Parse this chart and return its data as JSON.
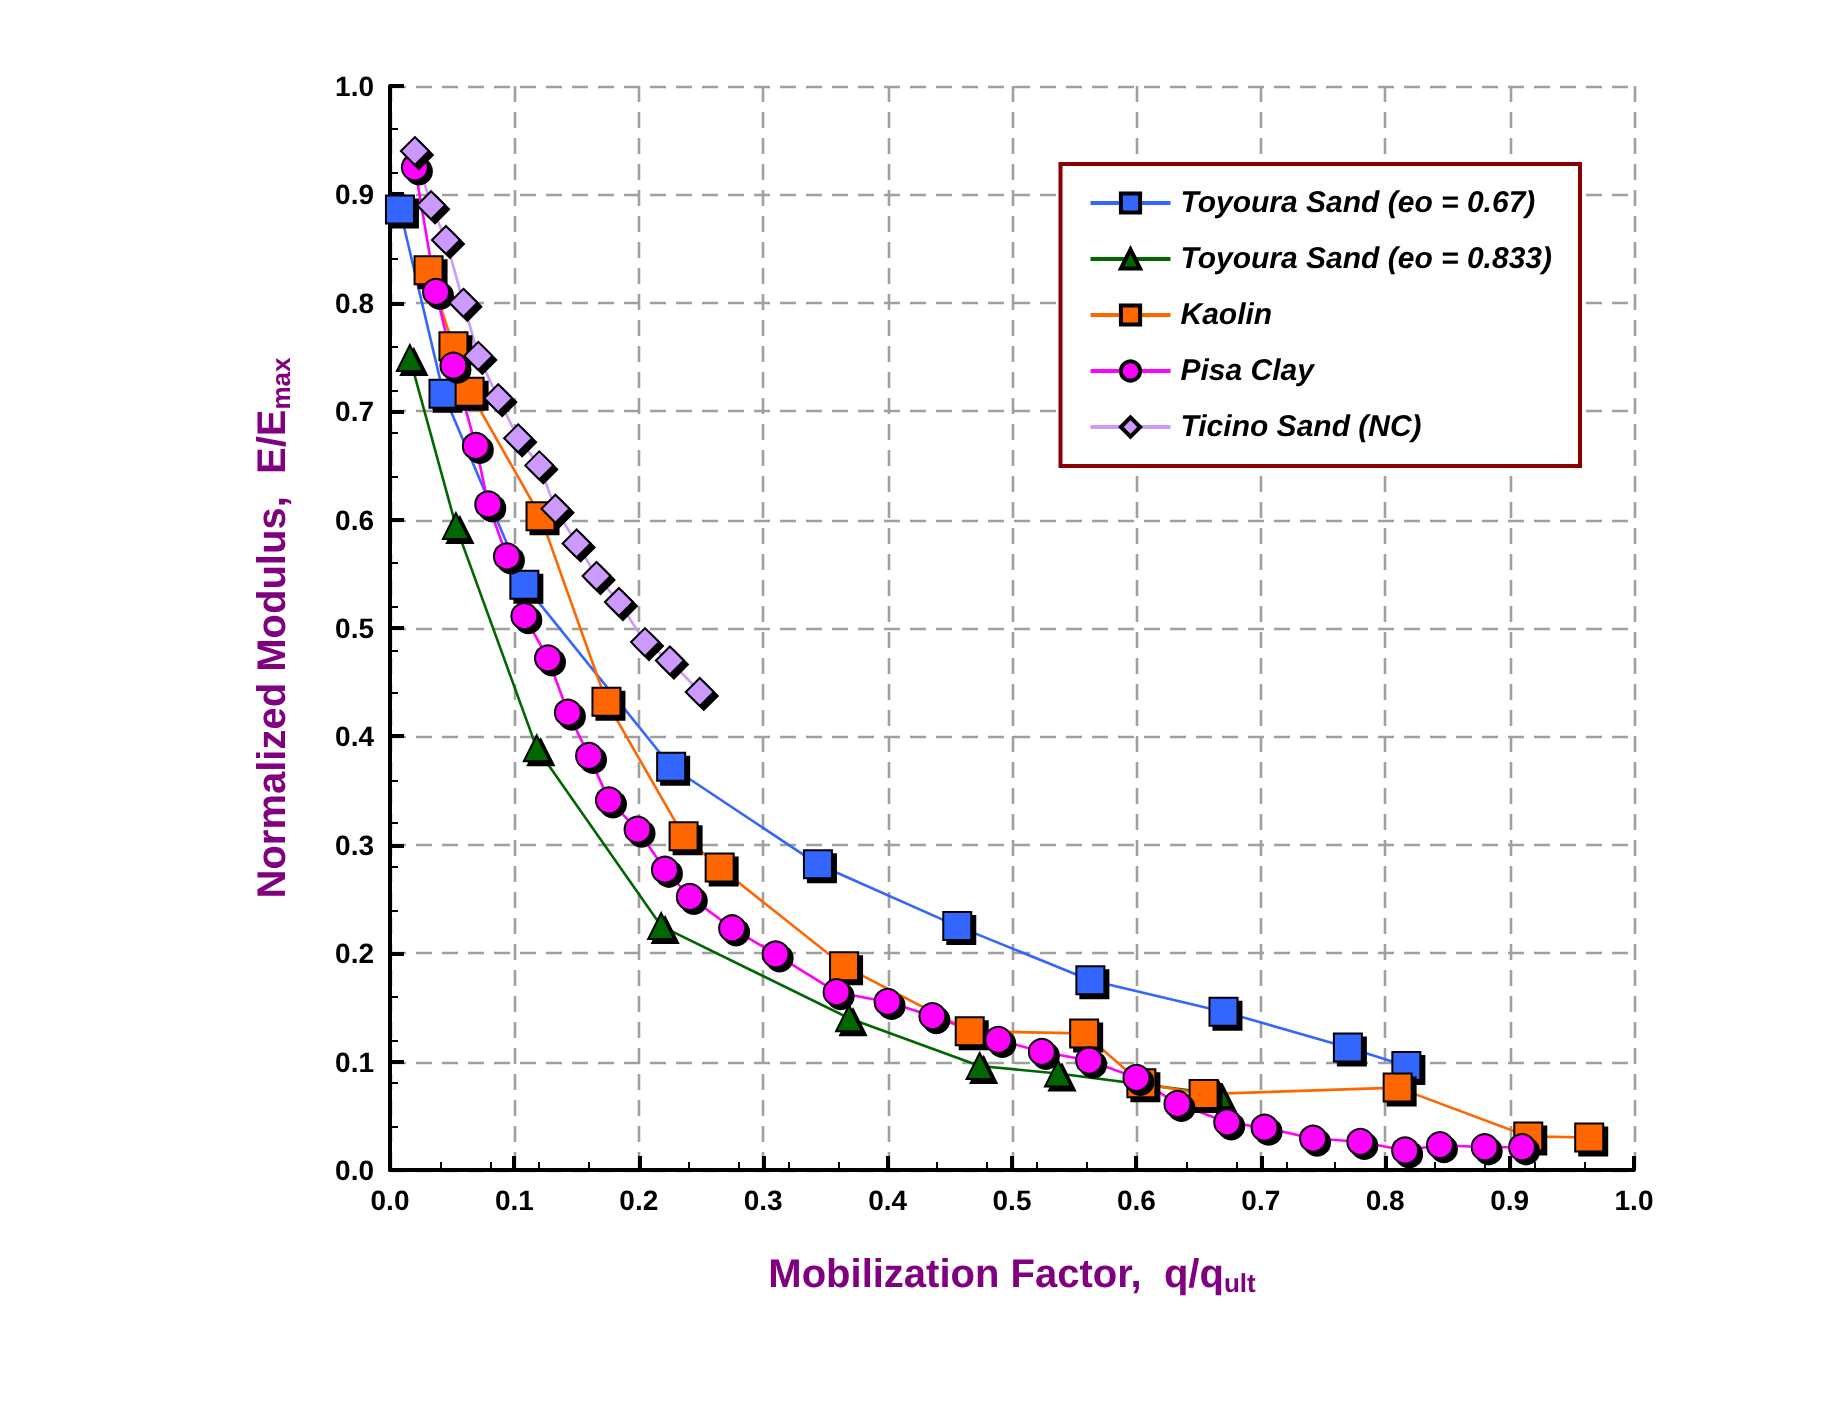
{
  "chart_data": {
    "type": "line",
    "xlabel": "Mobilization Factor,  q/q$_{ult}$",
    "ylabel": "Normalized Modulus,  E/E$_{max}$",
    "xlim": [
      0,
      1
    ],
    "ylim": [
      0,
      1
    ],
    "xticks": [
      {
        "value": 0,
        "label": "0.0"
      },
      0.1,
      0.2,
      0.3,
      0.4,
      0.5,
      0.6,
      0.7,
      0.8,
      0.9,
      {
        "value": 1,
        "label": "1.0"
      }
    ],
    "yticks": [
      {
        "value": 0,
        "label": "0.0"
      },
      0.1,
      0.2,
      0.3,
      0.4,
      0.5,
      0.6,
      0.7,
      0.8,
      0.9,
      {
        "value": 1,
        "label": "1.0"
      }
    ],
    "grid": true,
    "legend": "top right",
    "series": [
      {
        "name": "Toyoura Sand (eo = 0.67)",
        "color": "#3366ff",
        "marker": "square",
        "x": [
          0.008,
          0.043,
          0.108,
          0.226,
          0.344,
          0.456,
          0.563,
          0.67,
          0.77,
          0.817
        ],
        "values": [
          0.886,
          0.716,
          0.54,
          0.372,
          0.282,
          0.225,
          0.175,
          0.146,
          0.113,
          0.096
        ]
      },
      {
        "name": "Toyoura Sand (eo = 0.833)",
        "color": "#006600",
        "marker": "triangle",
        "x": [
          0.016,
          0.053,
          0.118,
          0.218,
          0.369,
          0.474,
          0.537,
          0.666
        ],
        "values": [
          0.749,
          0.594,
          0.389,
          0.225,
          0.14,
          0.096,
          0.089,
          0.07
        ]
      },
      {
        "name": "Kaolin",
        "color": "#ff6600",
        "marker": "square",
        "x": [
          0.031,
          0.051,
          0.064,
          0.121,
          0.174,
          0.236,
          0.265,
          0.365,
          0.466,
          0.558,
          0.604,
          0.654,
          0.81,
          0.915,
          0.964
        ],
        "values": [
          0.83,
          0.76,
          0.718,
          0.603,
          0.432,
          0.308,
          0.279,
          0.188,
          0.128,
          0.126,
          0.08,
          0.07,
          0.076,
          0.031,
          0.03
        ]
      },
      {
        "name": "Pisa Clay",
        "color": "#ff00ff",
        "marker": "circle",
        "x": [
          0.02,
          0.037,
          0.051,
          0.069,
          0.079,
          0.094,
          0.108,
          0.127,
          0.143,
          0.16,
          0.176,
          0.199,
          0.221,
          0.241,
          0.275,
          0.31,
          0.359,
          0.4,
          0.436,
          0.489,
          0.524,
          0.562,
          0.6,
          0.633,
          0.673,
          0.703,
          0.742,
          0.78,
          0.816,
          0.844,
          0.88,
          0.91
        ],
        "values": [
          0.925,
          0.81,
          0.742,
          0.668,
          0.614,
          0.566,
          0.511,
          0.472,
          0.422,
          0.382,
          0.341,
          0.314,
          0.277,
          0.252,
          0.223,
          0.199,
          0.164,
          0.155,
          0.142,
          0.12,
          0.109,
          0.101,
          0.085,
          0.061,
          0.044,
          0.039,
          0.029,
          0.026,
          0.018,
          0.023,
          0.021,
          0.021
        ]
      },
      {
        "name": "Ticino Sand (NC)",
        "color": "#cc99ff",
        "marker": "diamond",
        "x": [
          0.02,
          0.033,
          0.045,
          0.059,
          0.071,
          0.087,
          0.103,
          0.12,
          0.133,
          0.15,
          0.166,
          0.184,
          0.205,
          0.225,
          0.249
        ],
        "values": [
          0.94,
          0.89,
          0.858,
          0.8,
          0.751,
          0.712,
          0.675,
          0.65,
          0.61,
          0.578,
          0.548,
          0.524,
          0.487,
          0.47,
          0.441
        ]
      }
    ]
  }
}
